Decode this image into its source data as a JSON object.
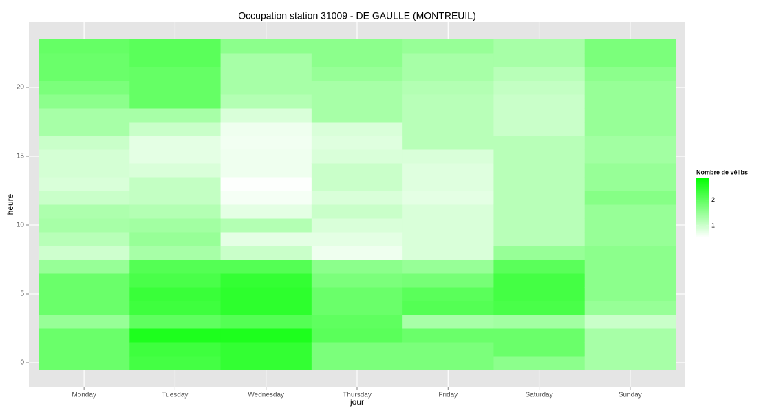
{
  "chart_data": {
    "type": "heatmap",
    "title": "Occupation station 31009 - DE GAULLE (MONTREUIL)",
    "x_label": "jour",
    "y_label": "heure",
    "categories": [
      "Monday",
      "Tuesday",
      "Wednesday",
      "Thursday",
      "Friday",
      "Saturday",
      "Sunday"
    ],
    "y": [
      0,
      1,
      2,
      3,
      4,
      5,
      6,
      7,
      8,
      9,
      10,
      11,
      12,
      13,
      14,
      15,
      16,
      17,
      18,
      19,
      20,
      21,
      22,
      23
    ],
    "values": [
      [
        1.9,
        1.9,
        1.9,
        1.5,
        1.9,
        1.9,
        1.9,
        1.5,
        1.0,
        1.2,
        1.35,
        1.3,
        1.05,
        0.9,
        0.95,
        0.95,
        1.05,
        1.35,
        1.35,
        1.6,
        1.75,
        1.9,
        1.9,
        1.95
      ],
      [
        2.25,
        2.3,
        2.6,
        2.0,
        2.3,
        2.35,
        2.2,
        2.1,
        1.35,
        1.5,
        1.4,
        1.25,
        1.1,
        1.1,
        0.9,
        0.8,
        0.8,
        1.05,
        1.35,
        1.95,
        1.95,
        1.95,
        2.05,
        2.05
      ],
      [
        2.4,
        2.4,
        2.6,
        2.1,
        2.45,
        2.45,
        2.4,
        2.1,
        1.05,
        0.8,
        1.25,
        0.8,
        0.65,
        0.58,
        0.7,
        0.7,
        0.68,
        0.7,
        0.9,
        1.25,
        1.35,
        1.35,
        1.35,
        1.6
      ],
      [
        1.75,
        1.75,
        2.05,
        2.0,
        1.9,
        1.9,
        1.75,
        1.6,
        0.7,
        0.8,
        0.9,
        1.05,
        0.9,
        1.05,
        1.05,
        0.9,
        0.85,
        0.9,
        1.35,
        1.35,
        1.35,
        1.5,
        1.6,
        1.6
      ],
      [
        1.75,
        1.75,
        1.9,
        1.35,
        2.1,
        2.05,
        1.8,
        1.5,
        0.9,
        0.9,
        0.9,
        0.9,
        0.8,
        0.85,
        0.85,
        0.9,
        1.2,
        1.2,
        1.2,
        1.2,
        1.25,
        1.35,
        1.35,
        1.5
      ],
      [
        1.6,
        1.9,
        1.9,
        1.4,
        2.2,
        2.25,
        2.25,
        2.05,
        1.5,
        1.2,
        1.2,
        1.2,
        1.2,
        1.2,
        1.2,
        1.2,
        1.2,
        1.05,
        1.05,
        1.05,
        1.1,
        1.2,
        1.35,
        1.35
      ],
      [
        1.35,
        1.35,
        1.35,
        1.05,
        1.5,
        1.6,
        1.6,
        1.6,
        1.6,
        1.5,
        1.5,
        1.5,
        1.65,
        1.5,
        1.5,
        1.4,
        1.4,
        1.5,
        1.5,
        1.5,
        1.5,
        1.6,
        1.75,
        1.75
      ]
    ],
    "ylim": [
      -1.75,
      24.75
    ],
    "yticks": [
      0,
      5,
      10,
      15,
      20
    ],
    "grid": true,
    "low_color": "#ffffff",
    "high_color": "#00ff00",
    "legend_title": "Nombre de vélibs",
    "clim": [
      0.56,
      2.86
    ],
    "legend_ticks": [
      1,
      2
    ]
  }
}
